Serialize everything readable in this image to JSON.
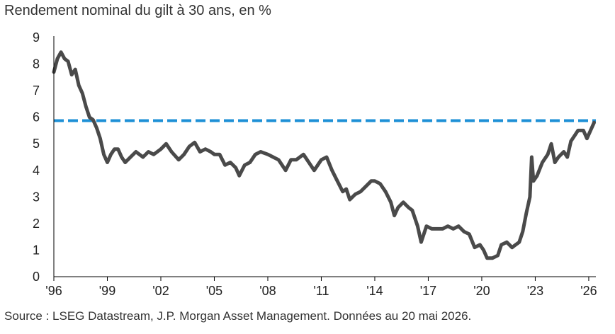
{
  "colors": {
    "series": "#4a4a4a",
    "reference": "#1e90d6",
    "axis": "#000000"
  },
  "chart_data": {
    "type": "line",
    "title": "Rendement nominal du gilt à 30 ans, en %",
    "source": "Source : LSEG Datastream, J.P. Morgan Asset Management. Données au 20 mai 2026.",
    "ylim": [
      0,
      9
    ],
    "yticks": [
      0,
      1,
      2,
      3,
      4,
      5,
      6,
      7,
      8,
      9
    ],
    "xlim": [
      1996.0,
      2026.4
    ],
    "xticks": [
      {
        "value": 1996,
        "label": "'96"
      },
      {
        "value": 1999,
        "label": "'99"
      },
      {
        "value": 2002,
        "label": "'02"
      },
      {
        "value": 2005,
        "label": "'05"
      },
      {
        "value": 2008,
        "label": "'08"
      },
      {
        "value": 2011,
        "label": "'11"
      },
      {
        "value": 2014,
        "label": "'14"
      },
      {
        "value": 2017,
        "label": "'17"
      },
      {
        "value": 2020,
        "label": "'20"
      },
      {
        "value": 2023,
        "label": "'23"
      },
      {
        "value": 2026,
        "label": "'26"
      }
    ],
    "grid": false,
    "legend": "none",
    "reference_line": {
      "y": 5.87,
      "style": "dashed"
    },
    "series": [
      {
        "points": [
          [
            1996.0,
            7.7
          ],
          [
            1996.2,
            8.2
          ],
          [
            1996.4,
            8.45
          ],
          [
            1996.6,
            8.2
          ],
          [
            1996.8,
            8.1
          ],
          [
            1997.0,
            7.6
          ],
          [
            1997.2,
            7.8
          ],
          [
            1997.4,
            7.2
          ],
          [
            1997.6,
            6.9
          ],
          [
            1997.8,
            6.4
          ],
          [
            1998.0,
            6.0
          ],
          [
            1998.2,
            5.9
          ],
          [
            1998.4,
            5.6
          ],
          [
            1998.6,
            5.2
          ],
          [
            1998.8,
            4.6
          ],
          [
            1999.0,
            4.3
          ],
          [
            1999.2,
            4.6
          ],
          [
            1999.4,
            4.8
          ],
          [
            1999.6,
            4.8
          ],
          [
            1999.8,
            4.5
          ],
          [
            2000.0,
            4.3
          ],
          [
            2000.3,
            4.5
          ],
          [
            2000.6,
            4.7
          ],
          [
            2001.0,
            4.5
          ],
          [
            2001.3,
            4.7
          ],
          [
            2001.6,
            4.6
          ],
          [
            2002.0,
            4.8
          ],
          [
            2002.3,
            5.0
          ],
          [
            2002.6,
            4.7
          ],
          [
            2003.0,
            4.4
          ],
          [
            2003.3,
            4.6
          ],
          [
            2003.6,
            4.9
          ],
          [
            2003.9,
            5.05
          ],
          [
            2004.2,
            4.7
          ],
          [
            2004.5,
            4.8
          ],
          [
            2004.8,
            4.7
          ],
          [
            2005.0,
            4.6
          ],
          [
            2005.3,
            4.6
          ],
          [
            2005.6,
            4.2
          ],
          [
            2005.9,
            4.3
          ],
          [
            2006.2,
            4.1
          ],
          [
            2006.4,
            3.8
          ],
          [
            2006.7,
            4.2
          ],
          [
            2007.0,
            4.3
          ],
          [
            2007.3,
            4.6
          ],
          [
            2007.6,
            4.7
          ],
          [
            2008.0,
            4.6
          ],
          [
            2008.3,
            4.5
          ],
          [
            2008.6,
            4.4
          ],
          [
            2009.0,
            4.0
          ],
          [
            2009.3,
            4.4
          ],
          [
            2009.6,
            4.4
          ],
          [
            2010.0,
            4.6
          ],
          [
            2010.3,
            4.3
          ],
          [
            2010.6,
            4.0
          ],
          [
            2011.0,
            4.4
          ],
          [
            2011.3,
            4.5
          ],
          [
            2011.6,
            4.0
          ],
          [
            2011.9,
            3.6
          ],
          [
            2012.2,
            3.2
          ],
          [
            2012.4,
            3.3
          ],
          [
            2012.6,
            2.9
          ],
          [
            2012.9,
            3.1
          ],
          [
            2013.2,
            3.2
          ],
          [
            2013.5,
            3.4
          ],
          [
            2013.8,
            3.6
          ],
          [
            2014.0,
            3.6
          ],
          [
            2014.3,
            3.5
          ],
          [
            2014.6,
            3.2
          ],
          [
            2014.9,
            2.8
          ],
          [
            2015.1,
            2.3
          ],
          [
            2015.3,
            2.6
          ],
          [
            2015.6,
            2.8
          ],
          [
            2015.9,
            2.6
          ],
          [
            2016.1,
            2.5
          ],
          [
            2016.4,
            1.9
          ],
          [
            2016.6,
            1.3
          ],
          [
            2016.9,
            1.9
          ],
          [
            2017.2,
            1.8
          ],
          [
            2017.5,
            1.8
          ],
          [
            2017.8,
            1.8
          ],
          [
            2018.1,
            1.9
          ],
          [
            2018.4,
            1.8
          ],
          [
            2018.7,
            1.9
          ],
          [
            2019.0,
            1.7
          ],
          [
            2019.3,
            1.6
          ],
          [
            2019.6,
            1.1
          ],
          [
            2019.9,
            1.2
          ],
          [
            2020.1,
            1.0
          ],
          [
            2020.3,
            0.7
          ],
          [
            2020.6,
            0.7
          ],
          [
            2020.9,
            0.8
          ],
          [
            2021.1,
            1.2
          ],
          [
            2021.4,
            1.3
          ],
          [
            2021.7,
            1.1
          ],
          [
            2021.9,
            1.2
          ],
          [
            2022.1,
            1.3
          ],
          [
            2022.3,
            1.7
          ],
          [
            2022.5,
            2.4
          ],
          [
            2022.7,
            3.0
          ],
          [
            2022.8,
            4.5
          ],
          [
            2022.9,
            3.6
          ],
          [
            2023.1,
            3.8
          ],
          [
            2023.4,
            4.3
          ],
          [
            2023.7,
            4.6
          ],
          [
            2023.9,
            5.0
          ],
          [
            2024.1,
            4.3
          ],
          [
            2024.3,
            4.5
          ],
          [
            2024.6,
            4.7
          ],
          [
            2024.8,
            4.5
          ],
          [
            2025.0,
            5.1
          ],
          [
            2025.2,
            5.3
          ],
          [
            2025.4,
            5.5
          ],
          [
            2025.7,
            5.5
          ],
          [
            2025.9,
            5.2
          ],
          [
            2026.1,
            5.5
          ],
          [
            2026.3,
            5.8
          ]
        ]
      }
    ]
  }
}
